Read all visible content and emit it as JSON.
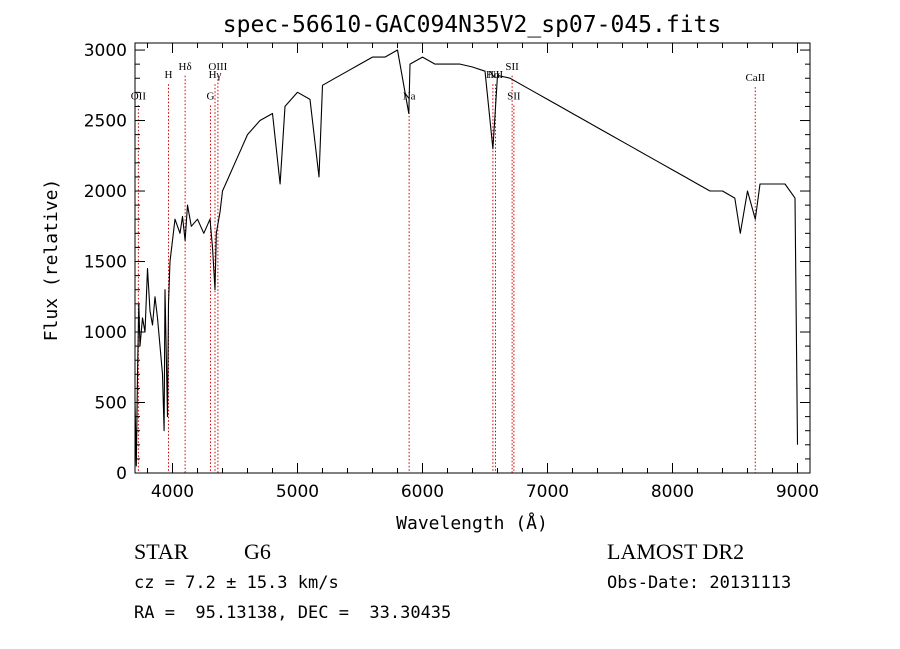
{
  "chart_data": {
    "type": "line",
    "title": "spec-56610-GAC094N35V2_sp07-045.fits",
    "xlabel": "Wavelength (Å)",
    "ylabel": "Flux (relative)",
    "xlim": [
      3700,
      9100
    ],
    "ylim": [
      0,
      3050
    ],
    "x_ticks": [
      4000,
      5000,
      6000,
      7000,
      8000,
      9000
    ],
    "y_ticks": [
      0,
      500,
      1000,
      1500,
      2000,
      2500,
      3000
    ],
    "grid": false,
    "line_color": "#000000",
    "marker_color": "#cc0000",
    "series": [
      {
        "x": [
          3700,
          3710,
          3720,
          3730,
          3740,
          3760,
          3780,
          3800,
          3820,
          3840,
          3860,
          3880,
          3900,
          3920,
          3933,
          3940,
          3960,
          3968,
          3980,
          4000,
          4020,
          4040,
          4060,
          4080,
          4101,
          4120,
          4150,
          4200,
          4250,
          4300,
          4320,
          4340,
          4350,
          4380,
          4400,
          4450,
          4500,
          4550,
          4600,
          4700,
          4800,
          4861,
          4900,
          5000,
          5100,
          5172,
          5200,
          5300,
          5400,
          5500,
          5600,
          5700,
          5800,
          5890,
          5900,
          6000,
          6100,
          6200,
          6300,
          6400,
          6500,
          6563,
          6600,
          6700,
          6800,
          6900,
          7000,
          7100,
          7200,
          7300,
          7400,
          7500,
          7600,
          7700,
          7800,
          7900,
          8000,
          8100,
          8200,
          8300,
          8400,
          8498,
          8542,
          8600,
          8662,
          8700,
          8800,
          8900,
          8980,
          9000
        ],
        "values": [
          500,
          50,
          700,
          1200,
          900,
          1100,
          1000,
          1450,
          1150,
          1050,
          1250,
          1100,
          900,
          700,
          300,
          1300,
          400,
          1200,
          1500,
          1650,
          1800,
          1750,
          1700,
          1820,
          1650,
          1900,
          1750,
          1800,
          1700,
          1800,
          1600,
          1300,
          1700,
          1850,
          2000,
          2100,
          2200,
          2300,
          2400,
          2500,
          2550,
          2050,
          2600,
          2700,
          2650,
          2100,
          2750,
          2800,
          2850,
          2900,
          2950,
          2950,
          3000,
          2550,
          2900,
          2950,
          2900,
          2900,
          2900,
          2880,
          2850,
          2300,
          2820,
          2800,
          2750,
          2700,
          2650,
          2600,
          2550,
          2500,
          2450,
          2400,
          2350,
          2300,
          2250,
          2200,
          2150,
          2100,
          2050,
          2000,
          2000,
          1950,
          1700,
          2000,
          1800,
          2050,
          2050,
          2050,
          1950,
          200
        ]
      }
    ],
    "line_markers": [
      {
        "x": 3727,
        "label": "OII",
        "y": 2650
      },
      {
        "x": 3968,
        "label": "H",
        "y": 2800
      },
      {
        "x": 4101,
        "label": "Hδ",
        "y": 2860
      },
      {
        "x": 4304,
        "label": "G",
        "y": 2650
      },
      {
        "x": 4340,
        "label": "Hγ",
        "y": 2800
      },
      {
        "x": 4363,
        "label": "OIII",
        "y": 2860
      },
      {
        "x": 5893,
        "label": "Na",
        "y": 2650
      },
      {
        "x": 6563,
        "label": "Hα",
        "y": 2800
      },
      {
        "x": 6584,
        "label": "NII",
        "y": 2800
      },
      {
        "x": 6717,
        "label": "SII",
        "y": 2860
      },
      {
        "x": 6731,
        "label": "SII",
        "y": 2650
      },
      {
        "x": 8662,
        "label": "CaII",
        "y": 2780
      }
    ]
  },
  "info": {
    "object_class": "STAR",
    "subclass": "G6",
    "redshift": "cz = 7.2 ± 15.3 km/s",
    "coordinates": "RA =  95.13138, DEC =  33.30435",
    "survey": "LAMOST DR2",
    "obs_date": "Obs-Date: 20131113"
  }
}
